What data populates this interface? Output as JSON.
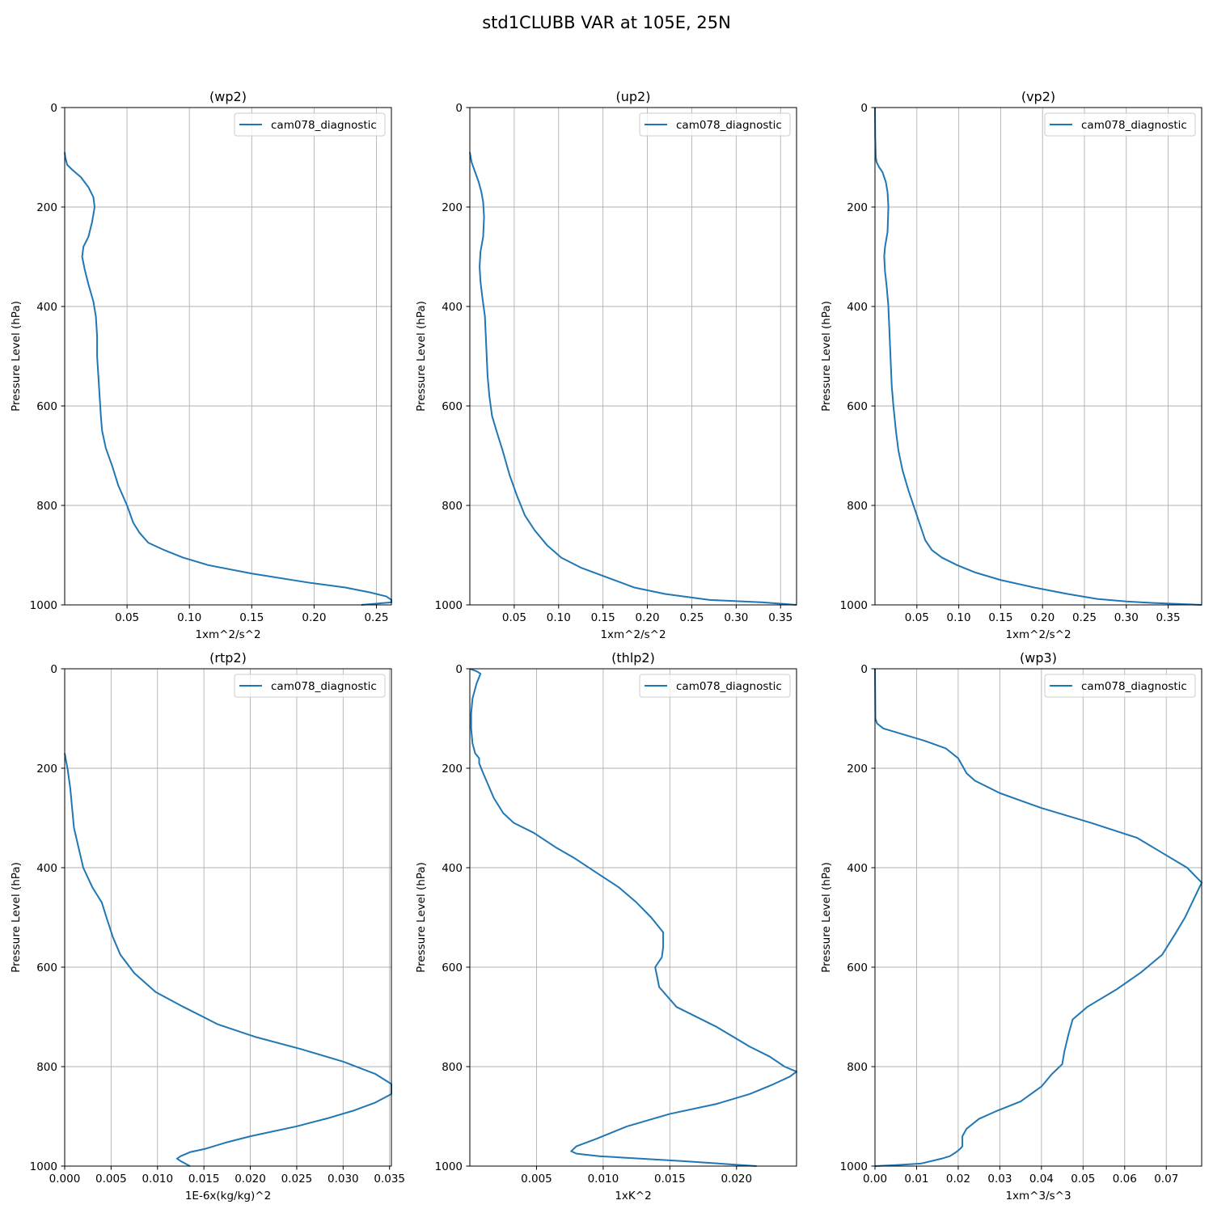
{
  "figure": {
    "title": "std1CLUBB VAR at 105E, 25N",
    "line_color": "#1f77b4",
    "grid_color": "#b0b0b0"
  },
  "chart_data": [
    {
      "type": "line",
      "title": "(wp2)",
      "xlabel": "1xm^2/s^2",
      "ylabel": "Pressure Level (hPa)",
      "xlim": [
        0.0,
        0.262
      ],
      "ylim": [
        1000,
        0
      ],
      "y_inverted": true,
      "grid": true,
      "legend": "upper-right",
      "xticks": [
        0.05,
        0.1,
        0.15,
        0.2,
        0.25
      ],
      "xtick_labels": [
        "0.05",
        "0.10",
        "0.15",
        "0.20",
        "0.25"
      ],
      "yticks": [
        0,
        200,
        400,
        600,
        800,
        1000
      ],
      "ytick_labels": [
        "0",
        "200",
        "400",
        "600",
        "800",
        "1000"
      ],
      "series": [
        {
          "name": "cam078_diagnostic",
          "x": [
            0.0,
            0.0005,
            0.002,
            0.006,
            0.013,
            0.019,
            0.023,
            0.024,
            0.022,
            0.019,
            0.015,
            0.014,
            0.016,
            0.019,
            0.023,
            0.025,
            0.026,
            0.026,
            0.027,
            0.028,
            0.029,
            0.03,
            0.033,
            0.038,
            0.043,
            0.05,
            0.055,
            0.06,
            0.067,
            0.08,
            0.095,
            0.115,
            0.15,
            0.195,
            0.225,
            0.245,
            0.258,
            0.262,
            0.262,
            0.238
          ],
          "y": [
            90,
            100,
            115,
            125,
            140,
            160,
            180,
            200,
            230,
            260,
            280,
            300,
            325,
            355,
            390,
            420,
            460,
            500,
            540,
            580,
            620,
            650,
            685,
            720,
            760,
            800,
            835,
            855,
            875,
            890,
            905,
            920,
            937,
            955,
            965,
            975,
            983,
            990,
            995,
            1000
          ]
        }
      ]
    },
    {
      "type": "line",
      "title": "(up2)",
      "xlabel": "1xm^2/s^2",
      "ylabel": "Pressure Level (hPa)",
      "xlim": [
        0.0,
        0.368
      ],
      "ylim": [
        1000,
        0
      ],
      "y_inverted": true,
      "grid": true,
      "legend": "upper-right",
      "xticks": [
        0.05,
        0.1,
        0.15,
        0.2,
        0.25,
        0.3,
        0.35
      ],
      "xtick_labels": [
        "0.05",
        "0.10",
        "0.15",
        "0.20",
        "0.25",
        "0.30",
        "0.35"
      ],
      "yticks": [
        0,
        200,
        400,
        600,
        800,
        1000
      ],
      "ytick_labels": [
        "0",
        "200",
        "400",
        "600",
        "800",
        "1000"
      ],
      "series": [
        {
          "name": "cam078_diagnostic",
          "x": [
            0.0,
            0.002,
            0.006,
            0.01,
            0.013,
            0.015,
            0.016,
            0.015,
            0.012,
            0.011,
            0.012,
            0.014,
            0.017,
            0.018,
            0.019,
            0.02,
            0.022,
            0.025,
            0.03,
            0.037,
            0.045,
            0.053,
            0.062,
            0.073,
            0.087,
            0.103,
            0.125,
            0.155,
            0.185,
            0.22,
            0.27,
            0.33,
            0.368
          ],
          "y": [
            90,
            110,
            130,
            150,
            170,
            190,
            220,
            260,
            290,
            320,
            350,
            380,
            420,
            460,
            500,
            540,
            580,
            620,
            650,
            690,
            740,
            780,
            820,
            850,
            880,
            905,
            925,
            945,
            965,
            978,
            990,
            995,
            1000
          ]
        }
      ]
    },
    {
      "type": "line",
      "title": "(vp2)",
      "xlabel": "1xm^2/s^2",
      "ylabel": "Pressure Level (hPa)",
      "xlim": [
        0.0,
        0.39
      ],
      "ylim": [
        1000,
        0
      ],
      "y_inverted": true,
      "grid": true,
      "legend": "upper-right",
      "xticks": [
        0.05,
        0.1,
        0.15,
        0.2,
        0.25,
        0.3,
        0.35
      ],
      "xtick_labels": [
        "0.05",
        "0.10",
        "0.15",
        "0.20",
        "0.25",
        "0.30",
        "0.35"
      ],
      "yticks": [
        0,
        200,
        400,
        600,
        800,
        1000
      ],
      "ytick_labels": [
        "0",
        "200",
        "400",
        "600",
        "800",
        "1000"
      ],
      "series": [
        {
          "name": "cam078_diagnostic",
          "x": [
            0.0,
            0.0003,
            0.001,
            0.002,
            0.005,
            0.009,
            0.013,
            0.015,
            0.016,
            0.015,
            0.012,
            0.011,
            0.012,
            0.014,
            0.016,
            0.017,
            0.018,
            0.019,
            0.02,
            0.022,
            0.025,
            0.028,
            0.033,
            0.04,
            0.048,
            0.055,
            0.06,
            0.068,
            0.08,
            0.098,
            0.12,
            0.15,
            0.19,
            0.23,
            0.265,
            0.3,
            0.33,
            0.36,
            0.39
          ],
          "y": [
            0,
            60,
            100,
            110,
            120,
            130,
            150,
            170,
            200,
            250,
            280,
            300,
            330,
            360,
            400,
            440,
            480,
            520,
            560,
            600,
            650,
            690,
            730,
            770,
            810,
            845,
            870,
            890,
            905,
            920,
            935,
            950,
            965,
            978,
            988,
            993,
            996,
            998,
            1000
          ]
        }
      ]
    },
    {
      "type": "line",
      "title": "(rtp2)",
      "xlabel": "1E-6x(kg/kg)^2",
      "ylabel": "Pressure Level (hPa)",
      "xlim": [
        0.0,
        0.0352
      ],
      "ylim": [
        1000,
        0
      ],
      "y_inverted": true,
      "grid": true,
      "legend": "upper-right",
      "xticks": [
        0.0,
        0.005,
        0.01,
        0.015,
        0.02,
        0.025,
        0.03,
        0.035
      ],
      "xtick_labels": [
        "0.000",
        "0.005",
        "0.010",
        "0.015",
        "0.020",
        "0.025",
        "0.030",
        "0.035"
      ],
      "yticks": [
        0,
        200,
        400,
        600,
        800,
        1000
      ],
      "ytick_labels": [
        "0",
        "200",
        "400",
        "600",
        "800",
        "1000"
      ],
      "series": [
        {
          "name": "cam078_diagnostic",
          "x": [
            0.0,
            0.0003,
            0.0006,
            0.0008,
            0.001,
            0.0015,
            0.002,
            0.003,
            0.004,
            0.0045,
            0.0052,
            0.006,
            0.0075,
            0.0098,
            0.0128,
            0.0165,
            0.0205,
            0.0255,
            0.03,
            0.0335,
            0.0352,
            0.0352,
            0.0335,
            0.0312,
            0.0285,
            0.025,
            0.02,
            0.0175,
            0.0152,
            0.0135,
            0.0125,
            0.0121,
            0.0125,
            0.0135
          ],
          "y": [
            170,
            200,
            240,
            280,
            320,
            360,
            400,
            440,
            470,
            500,
            540,
            575,
            612,
            650,
            680,
            715,
            740,
            765,
            790,
            815,
            835,
            855,
            872,
            888,
            903,
            920,
            940,
            952,
            965,
            972,
            980,
            985,
            990,
            1000
          ]
        }
      ]
    },
    {
      "type": "line",
      "title": "(thlp2)",
      "xlabel": "1xK^2",
      "ylabel": "Pressure Level (hPa)",
      "xlim": [
        0.0,
        0.0245
      ],
      "ylim": [
        1000,
        0
      ],
      "y_inverted": true,
      "grid": true,
      "legend": "upper-right",
      "xticks": [
        0.005,
        0.01,
        0.015,
        0.02
      ],
      "xtick_labels": [
        "0.005",
        "0.010",
        "0.015",
        "0.020"
      ],
      "yticks": [
        0,
        200,
        400,
        600,
        800,
        1000
      ],
      "ytick_labels": [
        "0",
        "200",
        "400",
        "600",
        "800",
        "1000"
      ],
      "series": [
        {
          "name": "cam078_diagnostic",
          "x": [
            0.0,
            0.0005,
            0.0008,
            0.0005,
            0.0002,
            0.0001,
            0.0001,
            0.0002,
            0.0004,
            0.0007,
            0.0007,
            0.001,
            0.0018,
            0.0025,
            0.0033,
            0.0048,
            0.0065,
            0.0078,
            0.0095,
            0.0112,
            0.0125,
            0.0136,
            0.0145,
            0.0145,
            0.0144,
            0.0139,
            0.0142,
            0.0155,
            0.0185,
            0.021,
            0.0225,
            0.0236,
            0.0245,
            0.024,
            0.0228,
            0.021,
            0.0185,
            0.015,
            0.0118,
            0.0095,
            0.008,
            0.0076,
            0.008,
            0.0097,
            0.016,
            0.0215
          ],
          "y": [
            0,
            5,
            10,
            30,
            60,
            90,
            120,
            150,
            170,
            180,
            190,
            210,
            260,
            290,
            310,
            330,
            360,
            380,
            410,
            440,
            470,
            500,
            530,
            560,
            580,
            600,
            640,
            680,
            720,
            760,
            780,
            800,
            810,
            820,
            835,
            855,
            875,
            895,
            920,
            945,
            960,
            970,
            975,
            980,
            990,
            1000
          ]
        }
      ]
    },
    {
      "type": "line",
      "title": "(wp3)",
      "xlabel": "1xm^3/s^3",
      "ylabel": "Pressure Level (hPa)",
      "xlim": [
        0.0,
        0.0785
      ],
      "ylim": [
        1000,
        0
      ],
      "y_inverted": true,
      "grid": true,
      "legend": "upper-right",
      "xticks": [
        0.0,
        0.01,
        0.02,
        0.03,
        0.04,
        0.05,
        0.06,
        0.07
      ],
      "xtick_labels": [
        "0.00",
        "0.01",
        "0.02",
        "0.03",
        "0.04",
        "0.05",
        "0.06",
        "0.07"
      ],
      "yticks": [
        0,
        200,
        400,
        600,
        800,
        1000
      ],
      "ytick_labels": [
        "0",
        "200",
        "400",
        "600",
        "800",
        "1000"
      ],
      "series": [
        {
          "name": "cam078_diagnostic",
          "x": [
            0.0,
            0.0001,
            0.0005,
            0.002,
            0.006,
            0.012,
            0.017,
            0.02,
            0.021,
            0.022,
            0.024,
            0.03,
            0.04,
            0.052,
            0.063,
            0.069,
            0.075,
            0.0785,
            0.0765,
            0.0745,
            0.072,
            0.069,
            0.064,
            0.058,
            0.051,
            0.0475,
            0.0465,
            0.0455,
            0.045,
            0.0425,
            0.04,
            0.035,
            0.029,
            0.025,
            0.022,
            0.021,
            0.021,
            0.021,
            0.0205,
            0.0195,
            0.018,
            0.016,
            0.011,
            0.005,
            0.0
          ],
          "y": [
            0,
            100,
            110,
            120,
            130,
            145,
            160,
            180,
            195,
            210,
            225,
            250,
            280,
            310,
            340,
            370,
            400,
            430,
            465,
            500,
            535,
            575,
            610,
            645,
            680,
            705,
            735,
            770,
            795,
            815,
            840,
            870,
            890,
            905,
            925,
            940,
            950,
            960,
            965,
            972,
            980,
            985,
            995,
            998,
            1000
          ]
        }
      ]
    }
  ]
}
